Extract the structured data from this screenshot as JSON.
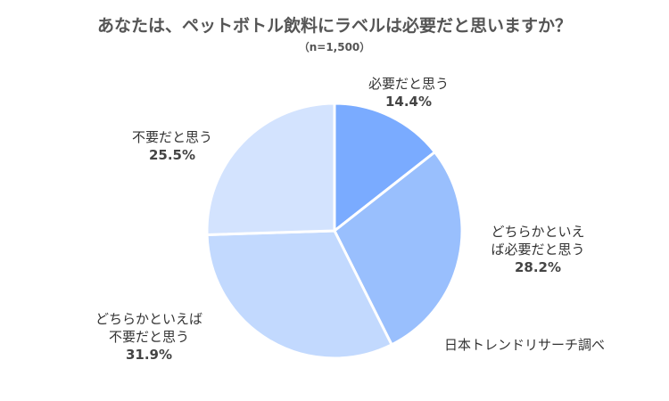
{
  "chart_data": {
    "type": "pie",
    "title": "あなたは、ペットボトル飲料にラベルは必要だと思いますか？",
    "subtitle": "（n=1,500）",
    "slices": [
      {
        "label_lines": [
          "必要だと思う"
        ],
        "value": 14.4,
        "value_label": "14.4%",
        "color": "#7aabff"
      },
      {
        "label_lines": [
          "どちらかといえ",
          "ば必要だと思う"
        ],
        "value": 28.2,
        "value_label": "28.2%",
        "color": "#99bffd"
      },
      {
        "label_lines": [
          "どちらかといえば",
          "不要だと思う"
        ],
        "value": 31.9,
        "value_label": "31.9%",
        "color": "#c2d9fe"
      },
      {
        "label_lines": [
          "不要だと思う"
        ],
        "value": 25.5,
        "value_label": "25.5%",
        "color": "#d3e3fe"
      }
    ],
    "source": "日本トレンドリサーチ調べ"
  }
}
